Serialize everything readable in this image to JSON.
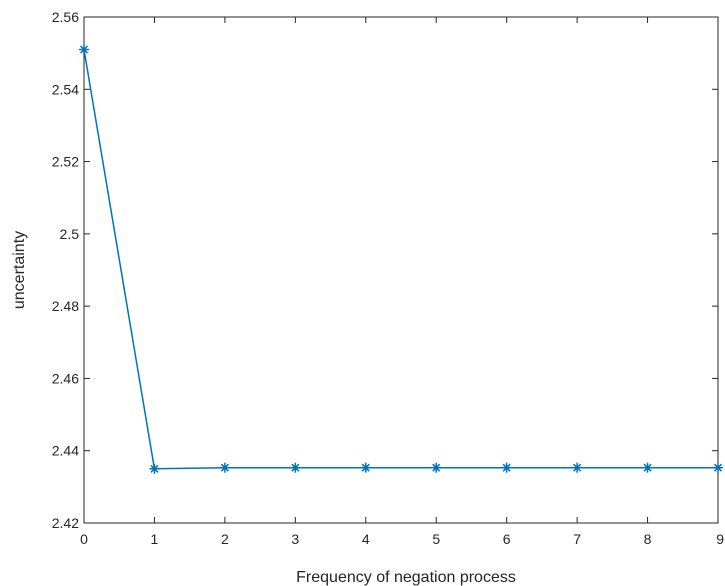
{
  "chart_data": {
    "type": "line",
    "title": "",
    "xlabel": "Frequency of negation process",
    "ylabel": "uncertainty",
    "xlim": [
      0,
      9
    ],
    "ylim": [
      2.42,
      2.56
    ],
    "x_ticks": [
      "0",
      "1",
      "2",
      "3",
      "4",
      "5",
      "6",
      "7",
      "8",
      "9"
    ],
    "y_ticks": [
      "2.42",
      "2.44",
      "2.46",
      "2.48",
      "2.5",
      "2.52",
      "2.54",
      "2.56"
    ],
    "grid": false,
    "legend": "none",
    "series": [
      {
        "x": [
          0,
          1,
          2,
          3,
          4,
          5,
          6,
          7,
          8,
          9
        ],
        "y": [
          2.551,
          2.435,
          2.4353,
          2.4353,
          2.4353,
          2.4353,
          2.4353,
          2.4353,
          2.4353,
          2.4353
        ],
        "color": "#0072BD",
        "marker": "asterisk"
      }
    ]
  }
}
